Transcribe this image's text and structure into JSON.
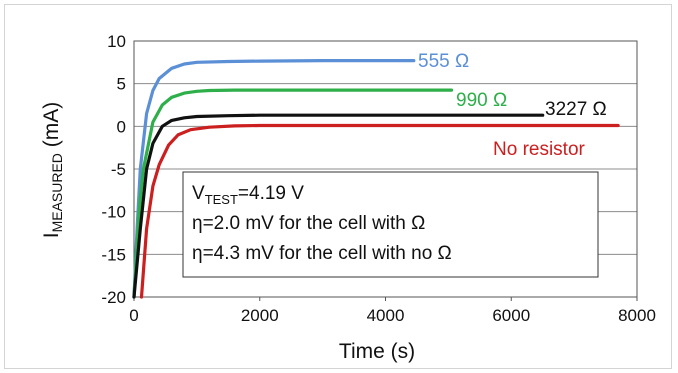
{
  "chart_data": {
    "type": "line",
    "xlabel": "Time (s)",
    "ylabel": {
      "main": "I",
      "sub": "MEASURED",
      "unit": " (mA)"
    },
    "xlim": [
      0,
      8000
    ],
    "ylim": [
      -20,
      10
    ],
    "xticks": [
      "0",
      "2000",
      "4000",
      "6000",
      "8000"
    ],
    "yticks": [
      "10",
      "5",
      "0",
      "-5",
      "-10",
      "-15",
      "-20"
    ],
    "grid": "horizontal",
    "series": [
      {
        "name": "555 Ω",
        "color": "#5b8fd6",
        "x": [
          0,
          50,
          100,
          200,
          300,
          400,
          600,
          800,
          1000,
          1500,
          2000,
          3000,
          4000,
          4450
        ],
        "y": [
          -20,
          -12,
          -5,
          1.5,
          4.2,
          5.6,
          6.8,
          7.3,
          7.5,
          7.6,
          7.65,
          7.7,
          7.7,
          7.7
        ]
      },
      {
        "name": "990 Ω",
        "color": "#2eaf4a",
        "x": [
          0,
          80,
          150,
          300,
          450,
          600,
          800,
          1000,
          1200,
          1600,
          2000,
          3000,
          4000,
          5050
        ],
        "y": [
          -20,
          -10,
          -5,
          0.5,
          2.5,
          3.4,
          3.9,
          4.1,
          4.2,
          4.25,
          4.25,
          4.25,
          4.25,
          4.25
        ]
      },
      {
        "name": "3227 Ω",
        "color": "#111111",
        "x": [
          0,
          100,
          200,
          300,
          450,
          600,
          800,
          1000,
          1500,
          2000,
          3000,
          4000,
          5000,
          6500
        ],
        "y": [
          -20,
          -12,
          -5,
          -2,
          0,
          0.7,
          1.0,
          1.15,
          1.25,
          1.3,
          1.3,
          1.3,
          1.3,
          1.3
        ]
      },
      {
        "name": "No resistor",
        "color": "#cc1f1f",
        "x": [
          120,
          200,
          300,
          400,
          550,
          700,
          900,
          1200,
          1600,
          2000,
          3000,
          4000,
          5000,
          6000,
          7700
        ],
        "y": [
          -20,
          -12,
          -7,
          -4.5,
          -2.2,
          -1.0,
          -0.4,
          -0.1,
          0.05,
          0.1,
          0.1,
          0.1,
          0.1,
          0.1,
          0.1
        ]
      }
    ],
    "annotation": {
      "line1_main": "V",
      "line1_sub": "TEST",
      "line1_rest": "=4.19 V",
      "line2": "η=2.0 mV for the cell with Ω",
      "line3": "η=4.3 mV for the cell with no Ω"
    }
  }
}
